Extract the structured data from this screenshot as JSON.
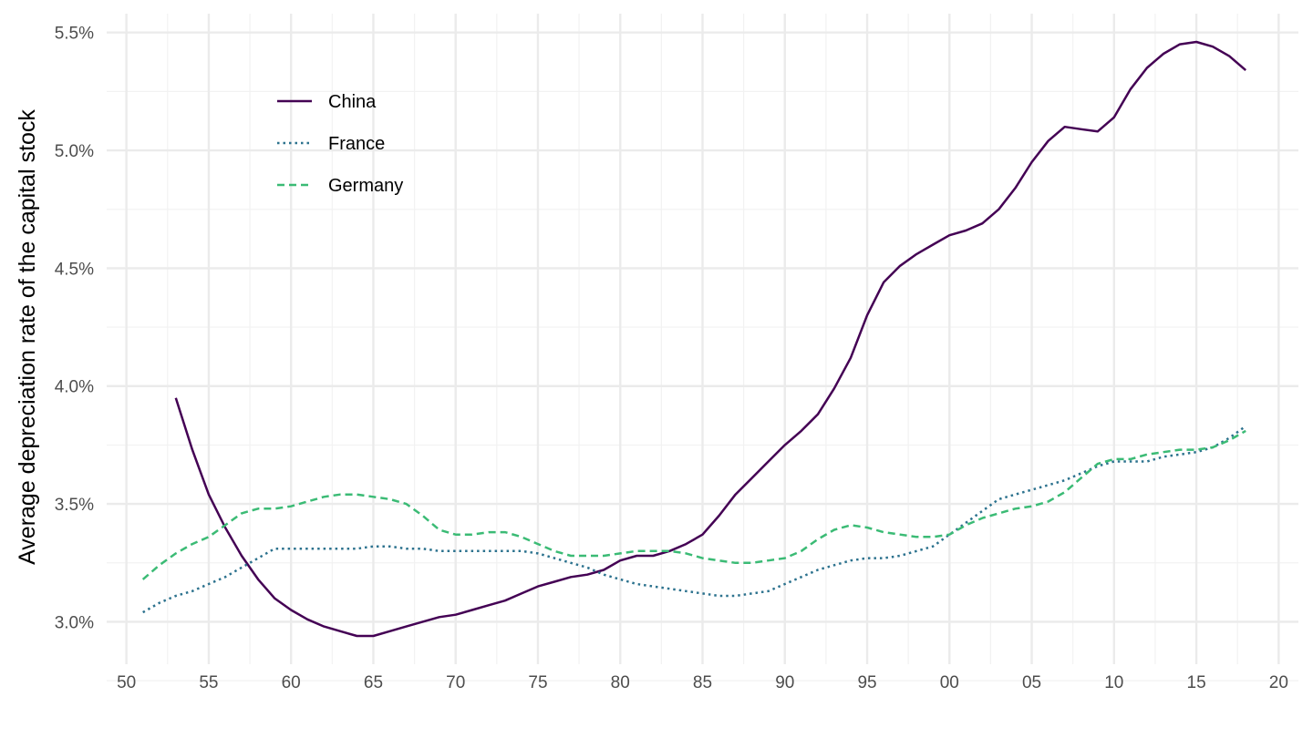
{
  "chart_data": {
    "type": "line",
    "title": "",
    "xlabel": "",
    "ylabel": "Average depreciation rate of the capital stock",
    "xlim": [
      1948.8,
      2021.2
    ],
    "ylim": [
      2.82,
      5.58
    ],
    "x_ticks": [
      {
        "value": 1950,
        "label": "50"
      },
      {
        "value": 1955,
        "label": "55"
      },
      {
        "value": 1960,
        "label": "60"
      },
      {
        "value": 1965,
        "label": "65"
      },
      {
        "value": 1970,
        "label": "70"
      },
      {
        "value": 1975,
        "label": "75"
      },
      {
        "value": 1980,
        "label": "80"
      },
      {
        "value": 1985,
        "label": "85"
      },
      {
        "value": 1990,
        "label": "90"
      },
      {
        "value": 1995,
        "label": "95"
      },
      {
        "value": 2000,
        "label": "00"
      },
      {
        "value": 2005,
        "label": "05"
      },
      {
        "value": 2010,
        "label": "10"
      },
      {
        "value": 2015,
        "label": "15"
      },
      {
        "value": 2020,
        "label": "20"
      }
    ],
    "y_ticks": [
      {
        "value": 3.0,
        "label": "3.0%"
      },
      {
        "value": 3.5,
        "label": "3.5%"
      },
      {
        "value": 4.0,
        "label": "4.0%"
      },
      {
        "value": 4.5,
        "label": "4.5%"
      },
      {
        "value": 5.0,
        "label": "5.0%"
      },
      {
        "value": 5.5,
        "label": "5.5%"
      }
    ],
    "grid": true,
    "legend_position": "top-left",
    "series": [
      {
        "name": "China",
        "color": "#440154",
        "dash": "solid",
        "x": [
          1953,
          1954,
          1955,
          1956,
          1957,
          1958,
          1959,
          1960,
          1961,
          1962,
          1963,
          1964,
          1965,
          1966,
          1967,
          1968,
          1969,
          1970,
          1971,
          1972,
          1973,
          1974,
          1975,
          1976,
          1977,
          1978,
          1979,
          1980,
          1981,
          1982,
          1983,
          1984,
          1985,
          1986,
          1987,
          1988,
          1989,
          1990,
          1991,
          1992,
          1993,
          1994,
          1995,
          1996,
          1997,
          1998,
          1999,
          2000,
          2001,
          2002,
          2003,
          2004,
          2005,
          2006,
          2007,
          2008,
          2009,
          2010,
          2011,
          2012,
          2013,
          2014,
          2015,
          2016,
          2017,
          2018
        ],
        "values": [
          3.95,
          3.73,
          3.54,
          3.4,
          3.28,
          3.18,
          3.1,
          3.05,
          3.01,
          2.98,
          2.96,
          2.94,
          2.94,
          2.96,
          2.98,
          3.0,
          3.02,
          3.03,
          3.05,
          3.07,
          3.09,
          3.12,
          3.15,
          3.17,
          3.19,
          3.2,
          3.22,
          3.26,
          3.28,
          3.28,
          3.3,
          3.33,
          3.37,
          3.45,
          3.54,
          3.61,
          3.68,
          3.75,
          3.81,
          3.88,
          3.99,
          4.12,
          4.3,
          4.44,
          4.51,
          4.56,
          4.6,
          4.64,
          4.66,
          4.69,
          4.75,
          4.84,
          4.95,
          5.04,
          5.1,
          5.09,
          5.08,
          5.14,
          5.26,
          5.35,
          5.41,
          5.45,
          5.46,
          5.44,
          5.4,
          5.34
        ]
      },
      {
        "name": "France",
        "color": "#2c728e",
        "dash": "dotted",
        "x": [
          1951,
          1952,
          1953,
          1954,
          1955,
          1956,
          1957,
          1958,
          1959,
          1960,
          1961,
          1962,
          1963,
          1964,
          1965,
          1966,
          1967,
          1968,
          1969,
          1970,
          1971,
          1972,
          1973,
          1974,
          1975,
          1976,
          1977,
          1978,
          1979,
          1980,
          1981,
          1982,
          1983,
          1984,
          1985,
          1986,
          1987,
          1988,
          1989,
          1990,
          1991,
          1992,
          1993,
          1994,
          1995,
          1996,
          1997,
          1998,
          1999,
          2000,
          2001,
          2002,
          2003,
          2004,
          2005,
          2006,
          2007,
          2008,
          2009,
          2010,
          2011,
          2012,
          2013,
          2014,
          2015,
          2016,
          2017,
          2018
        ],
        "values": [
          3.04,
          3.08,
          3.11,
          3.13,
          3.16,
          3.19,
          3.23,
          3.27,
          3.31,
          3.31,
          3.31,
          3.31,
          3.31,
          3.31,
          3.32,
          3.32,
          3.31,
          3.31,
          3.3,
          3.3,
          3.3,
          3.3,
          3.3,
          3.3,
          3.29,
          3.27,
          3.25,
          3.23,
          3.2,
          3.18,
          3.16,
          3.15,
          3.14,
          3.13,
          3.12,
          3.11,
          3.11,
          3.12,
          3.13,
          3.16,
          3.19,
          3.22,
          3.24,
          3.26,
          3.27,
          3.27,
          3.28,
          3.3,
          3.32,
          3.37,
          3.42,
          3.47,
          3.52,
          3.54,
          3.56,
          3.58,
          3.6,
          3.63,
          3.66,
          3.68,
          3.68,
          3.68,
          3.7,
          3.71,
          3.72,
          3.74,
          3.78,
          3.83
        ]
      },
      {
        "name": "Germany",
        "color": "#3bbb75",
        "dash": "dashed",
        "x": [
          1951,
          1952,
          1953,
          1954,
          1955,
          1956,
          1957,
          1958,
          1959,
          1960,
          1961,
          1962,
          1963,
          1964,
          1965,
          1966,
          1967,
          1968,
          1969,
          1970,
          1971,
          1972,
          1973,
          1974,
          1975,
          1976,
          1977,
          1978,
          1979,
          1980,
          1981,
          1982,
          1983,
          1984,
          1985,
          1986,
          1987,
          1988,
          1989,
          1990,
          1991,
          1992,
          1993,
          1994,
          1995,
          1996,
          1997,
          1998,
          1999,
          2000,
          2001,
          2002,
          2003,
          2004,
          2005,
          2006,
          2007,
          2008,
          2009,
          2010,
          2011,
          2012,
          2013,
          2014,
          2015,
          2016,
          2017,
          2018
        ],
        "values": [
          3.18,
          3.24,
          3.29,
          3.33,
          3.36,
          3.41,
          3.46,
          3.48,
          3.48,
          3.49,
          3.51,
          3.53,
          3.54,
          3.54,
          3.53,
          3.52,
          3.5,
          3.45,
          3.39,
          3.37,
          3.37,
          3.38,
          3.38,
          3.36,
          3.33,
          3.3,
          3.28,
          3.28,
          3.28,
          3.29,
          3.3,
          3.3,
          3.3,
          3.29,
          3.27,
          3.26,
          3.25,
          3.25,
          3.26,
          3.27,
          3.3,
          3.35,
          3.39,
          3.41,
          3.4,
          3.38,
          3.37,
          3.36,
          3.36,
          3.37,
          3.41,
          3.44,
          3.46,
          3.48,
          3.49,
          3.51,
          3.55,
          3.61,
          3.67,
          3.69,
          3.69,
          3.71,
          3.72,
          3.73,
          3.73,
          3.74,
          3.77,
          3.81
        ]
      }
    ]
  }
}
